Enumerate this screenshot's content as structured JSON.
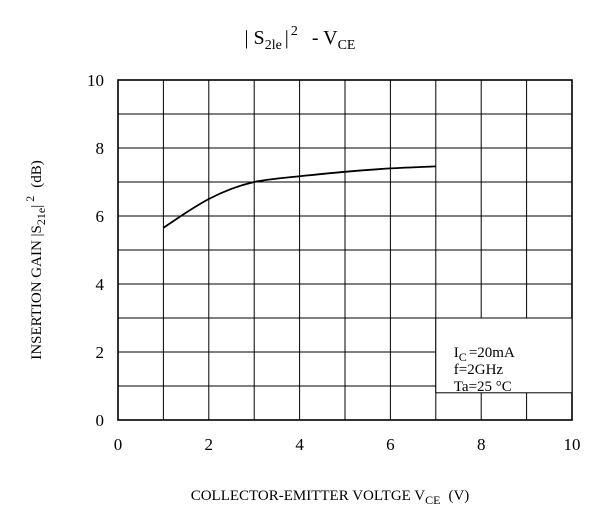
{
  "chart_data": {
    "type": "line",
    "title": {
      "p1": "| S",
      "p1_sub": "2le",
      "p2": "|",
      "p2_sup": "2",
      "p3": "- V",
      "p3_sub": "CE"
    },
    "xlabel": {
      "main": "COLLECTOR-EMITTER VOLTGE V",
      "sub": "CE",
      "unit": "(V)"
    },
    "ylabel": {
      "main": "INSERTION GAIN |S",
      "sub": "21e",
      "mid": "|",
      "sup": "2",
      "unit": "(dB)"
    },
    "xlim": [
      0,
      10
    ],
    "ylim": [
      0,
      10
    ],
    "x_ticks": [
      "0",
      "2",
      "4",
      "6",
      "8",
      "10"
    ],
    "y_ticks": [
      "0",
      "2",
      "4",
      "6",
      "8",
      "10"
    ],
    "x_grid_step": 1,
    "y_grid_step": 1,
    "grid": true,
    "series": [
      {
        "x": [
          1.0,
          1.5,
          2.0,
          2.5,
          3.0,
          3.5,
          4.0,
          5.0,
          6.0,
          7.0
        ],
        "y": [
          5.65,
          6.1,
          6.5,
          6.8,
          7.0,
          7.1,
          7.17,
          7.3,
          7.4,
          7.46
        ]
      }
    ],
    "conditions": {
      "ic_main": "I",
      "ic_sub": "C",
      "ic_value": "=20mA",
      "freq": "f=2GHz",
      "temp": "Ta=25 °C"
    }
  }
}
